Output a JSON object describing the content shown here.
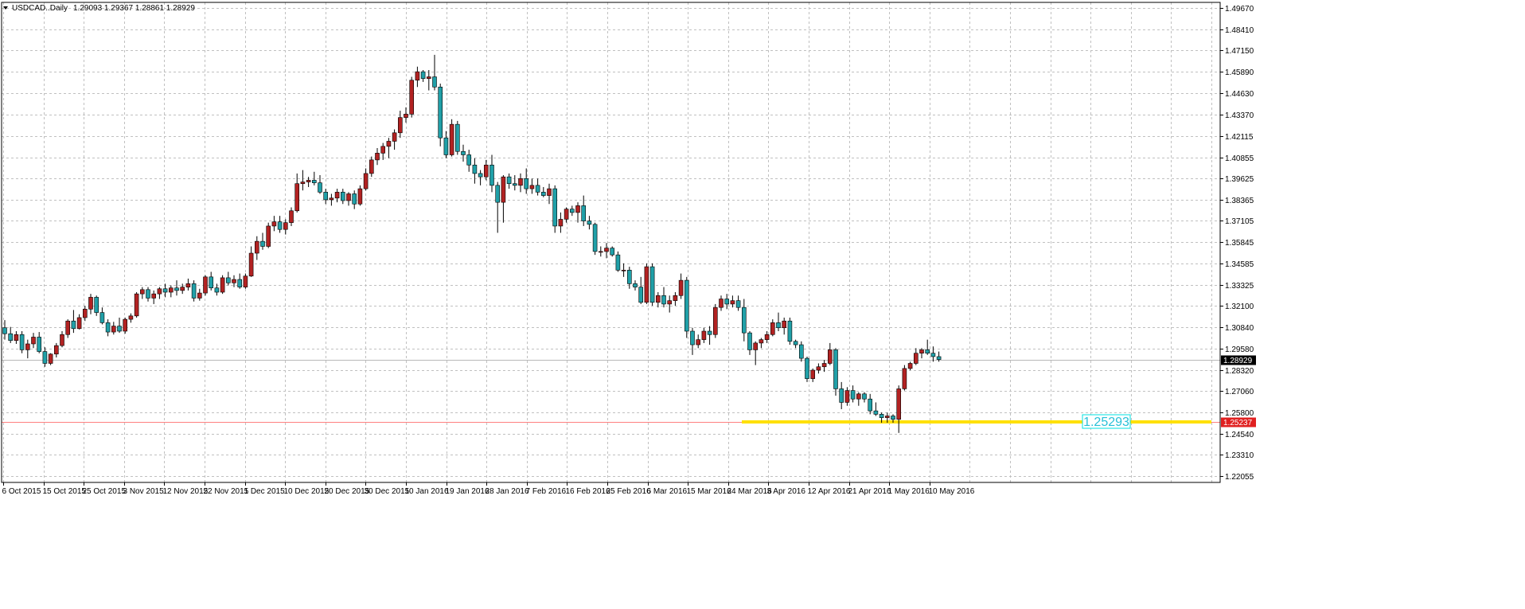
{
  "header": {
    "symbol": "USDCAD..Daily",
    "ohlc": "1.29093 1.29367 1.28861 1.28929"
  },
  "colors": {
    "bull": "#b22222",
    "bear": "#20a0a8",
    "grid": "#c0c0c0",
    "support_line": "#ff8080",
    "zone": "#ffe000",
    "label_box": "#00e0e0"
  },
  "current_price": "1.28929",
  "support_price": "1.25237",
  "zone_label": "1.25293",
  "chart_data": {
    "type": "candlestick",
    "title": "",
    "xlabel": "",
    "ylabel": "",
    "ylim": [
      1.2168,
      1.4999
    ],
    "y_ticks": [
      "1.49670",
      "1.48410",
      "1.47150",
      "1.45890",
      "1.44630",
      "1.43370",
      "1.42115",
      "1.40855",
      "1.39625",
      "1.38365",
      "1.37105",
      "1.35845",
      "1.34585",
      "1.33325",
      "1.32100",
      "1.30840",
      "1.29580",
      "1.28320",
      "1.27060",
      "1.25800",
      "1.24540",
      "1.23310",
      "1.22055"
    ],
    "x_ticks": [
      "6 Oct 2015",
      "15 Oct 2015",
      "25 Oct 2015",
      "3 Nov 2015",
      "12 Nov 2015",
      "22 Nov 2015",
      "1 Dec 2015",
      "10 Dec 2015",
      "20 Dec 2015",
      "30 Dec 2015",
      "10 Jan 2016",
      "19 Jan 2016",
      "28 Jan 2016",
      "7 Feb 2016",
      "16 Feb 2016",
      "25 Feb 2016",
      "6 Mar 2016",
      "15 Mar 2016",
      "24 Mar 2016",
      "3 Apr 2016",
      "12 Apr 2016",
      "21 Apr 2016",
      "1 May 2016",
      "10 May 2016"
    ],
    "horizontal_lines": [
      {
        "price": 1.28929,
        "label": "1.28929"
      },
      {
        "price": 1.25237,
        "label": "1.25237"
      }
    ],
    "zone": {
      "price": 1.2529,
      "label": "1.25293"
    },
    "candles": [
      [
        1.308,
        1.3125,
        1.301,
        1.3045
      ],
      [
        1.3045,
        1.3085,
        1.299,
        1.3005
      ],
      [
        1.3005,
        1.306,
        1.2985,
        1.304
      ],
      [
        1.304,
        1.306,
        1.293,
        1.295
      ],
      [
        1.295,
        1.301,
        1.29,
        1.2985
      ],
      [
        1.2985,
        1.305,
        1.296,
        1.3025
      ],
      [
        1.3025,
        1.3055,
        1.293,
        1.294
      ],
      [
        1.294,
        1.2965,
        1.285,
        1.287
      ],
      [
        1.287,
        1.293,
        1.286,
        1.2925
      ],
      [
        1.2925,
        1.299,
        1.2905,
        1.2975
      ],
      [
        1.2975,
        1.306,
        1.2965,
        1.304
      ],
      [
        1.304,
        1.313,
        1.302,
        1.312
      ],
      [
        1.312,
        1.3185,
        1.305,
        1.3075
      ],
      [
        1.3075,
        1.316,
        1.307,
        1.314
      ],
      [
        1.314,
        1.321,
        1.312,
        1.319
      ],
      [
        1.319,
        1.328,
        1.316,
        1.326
      ],
      [
        1.326,
        1.327,
        1.315,
        1.317
      ],
      [
        1.317,
        1.32,
        1.31,
        1.311
      ],
      [
        1.311,
        1.313,
        1.303,
        1.3055
      ],
      [
        1.3055,
        1.3115,
        1.304,
        1.309
      ],
      [
        1.309,
        1.314,
        1.305,
        1.306
      ],
      [
        1.306,
        1.314,
        1.3045,
        1.313
      ],
      [
        1.313,
        1.3165,
        1.311,
        1.315
      ],
      [
        1.315,
        1.329,
        1.314,
        1.328
      ],
      [
        1.328,
        1.332,
        1.325,
        1.3305
      ],
      [
        1.3305,
        1.332,
        1.3235,
        1.3255
      ],
      [
        1.3255,
        1.33,
        1.322,
        1.328
      ],
      [
        1.328,
        1.332,
        1.325,
        1.331
      ],
      [
        1.331,
        1.334,
        1.326,
        1.329
      ],
      [
        1.329,
        1.333,
        1.326,
        1.3315
      ],
      [
        1.3315,
        1.336,
        1.327,
        1.33
      ],
      [
        1.33,
        1.334,
        1.328,
        1.332
      ],
      [
        1.332,
        1.337,
        1.33,
        1.334
      ],
      [
        1.334,
        1.336,
        1.3235,
        1.3255
      ],
      [
        1.3255,
        1.331,
        1.324,
        1.3285
      ],
      [
        1.3285,
        1.339,
        1.327,
        1.338
      ],
      [
        1.338,
        1.341,
        1.33,
        1.3315
      ],
      [
        1.3315,
        1.334,
        1.327,
        1.329
      ],
      [
        1.329,
        1.339,
        1.328,
        1.3375
      ],
      [
        1.3375,
        1.341,
        1.333,
        1.3345
      ],
      [
        1.3345,
        1.339,
        1.332,
        1.3365
      ],
      [
        1.3365,
        1.34,
        1.331,
        1.332
      ],
      [
        1.332,
        1.34,
        1.331,
        1.3385
      ],
      [
        1.3385,
        1.356,
        1.338,
        1.352
      ],
      [
        1.352,
        1.362,
        1.348,
        1.359
      ],
      [
        1.359,
        1.364,
        1.354,
        1.356
      ],
      [
        1.356,
        1.37,
        1.355,
        1.368
      ],
      [
        1.368,
        1.374,
        1.365,
        1.3705
      ],
      [
        1.3705,
        1.374,
        1.364,
        1.366
      ],
      [
        1.366,
        1.372,
        1.363,
        1.37
      ],
      [
        1.37,
        1.379,
        1.368,
        1.377
      ],
      [
        1.377,
        1.399,
        1.376,
        1.393
      ],
      [
        1.393,
        1.401,
        1.389,
        1.394
      ],
      [
        1.394,
        1.397,
        1.391,
        1.395
      ],
      [
        1.395,
        1.4,
        1.392,
        1.3935
      ],
      [
        1.3935,
        1.398,
        1.387,
        1.388
      ],
      [
        1.388,
        1.39,
        1.381,
        1.3835
      ],
      [
        1.3835,
        1.387,
        1.38,
        1.3845
      ],
      [
        1.3845,
        1.39,
        1.382,
        1.388
      ],
      [
        1.388,
        1.39,
        1.381,
        1.383
      ],
      [
        1.383,
        1.388,
        1.38,
        1.387
      ],
      [
        1.387,
        1.389,
        1.378,
        1.381
      ],
      [
        1.381,
        1.392,
        1.38,
        1.39
      ],
      [
        1.39,
        1.402,
        1.389,
        1.399
      ],
      [
        1.399,
        1.409,
        1.397,
        1.407
      ],
      [
        1.407,
        1.414,
        1.404,
        1.411
      ],
      [
        1.411,
        1.417,
        1.407,
        1.415
      ],
      [
        1.415,
        1.42,
        1.408,
        1.418
      ],
      [
        1.418,
        1.425,
        1.413,
        1.423
      ],
      [
        1.423,
        1.436,
        1.42,
        1.432
      ],
      [
        1.432,
        1.438,
        1.429,
        1.434
      ],
      [
        1.434,
        1.456,
        1.432,
        1.454
      ],
      [
        1.454,
        1.462,
        1.45,
        1.459
      ],
      [
        1.459,
        1.46,
        1.453,
        1.455
      ],
      [
        1.455,
        1.46,
        1.448,
        1.456
      ],
      [
        1.456,
        1.469,
        1.448,
        1.45
      ],
      [
        1.45,
        1.452,
        1.415,
        1.42
      ],
      [
        1.42,
        1.424,
        1.408,
        1.41
      ],
      [
        1.41,
        1.431,
        1.409,
        1.428
      ],
      [
        1.428,
        1.43,
        1.41,
        1.412
      ],
      [
        1.412,
        1.416,
        1.406,
        1.41
      ],
      [
        1.41,
        1.413,
        1.4,
        1.404
      ],
      [
        1.404,
        1.408,
        1.393,
        1.399
      ],
      [
        1.399,
        1.401,
        1.392,
        1.397
      ],
      [
        1.397,
        1.407,
        1.395,
        1.404
      ],
      [
        1.404,
        1.41,
        1.388,
        1.392
      ],
      [
        1.392,
        1.394,
        1.364,
        1.382
      ],
      [
        1.382,
        1.398,
        1.37,
        1.397
      ],
      [
        1.397,
        1.399,
        1.39,
        1.393
      ],
      [
        1.393,
        1.398,
        1.389,
        1.392
      ],
      [
        1.392,
        1.399,
        1.388,
        1.396
      ],
      [
        1.396,
        1.402,
        1.387,
        1.39
      ],
      [
        1.39,
        1.396,
        1.387,
        1.392
      ],
      [
        1.392,
        1.396,
        1.386,
        1.388
      ],
      [
        1.388,
        1.391,
        1.385,
        1.386
      ],
      [
        1.386,
        1.393,
        1.381,
        1.39
      ],
      [
        1.39,
        1.392,
        1.364,
        1.368
      ],
      [
        1.368,
        1.376,
        1.364,
        1.372
      ],
      [
        1.372,
        1.379,
        1.37,
        1.378
      ],
      [
        1.378,
        1.38,
        1.374,
        1.376
      ],
      [
        1.376,
        1.382,
        1.37,
        1.38
      ],
      [
        1.38,
        1.386,
        1.368,
        1.371
      ],
      [
        1.371,
        1.374,
        1.366,
        1.369
      ],
      [
        1.369,
        1.37,
        1.351,
        1.353
      ],
      [
        1.353,
        1.356,
        1.35,
        1.353
      ],
      [
        1.353,
        1.358,
        1.349,
        1.355
      ],
      [
        1.355,
        1.356,
        1.35,
        1.351
      ],
      [
        1.351,
        1.353,
        1.341,
        1.342
      ],
      [
        1.342,
        1.346,
        1.338,
        1.342
      ],
      [
        1.342,
        1.344,
        1.331,
        1.334
      ],
      [
        1.334,
        1.336,
        1.33,
        1.332
      ],
      [
        1.332,
        1.338,
        1.322,
        1.323
      ],
      [
        1.323,
        1.346,
        1.322,
        1.344
      ],
      [
        1.344,
        1.346,
        1.321,
        1.323
      ],
      [
        1.323,
        1.329,
        1.32,
        1.327
      ],
      [
        1.327,
        1.332,
        1.32,
        1.322
      ],
      [
        1.322,
        1.327,
        1.317,
        1.324
      ],
      [
        1.324,
        1.329,
        1.321,
        1.327
      ],
      [
        1.327,
        1.34,
        1.325,
        1.336
      ],
      [
        1.336,
        1.338,
        1.302,
        1.306
      ],
      [
        1.306,
        1.308,
        1.292,
        1.298
      ],
      [
        1.298,
        1.304,
        1.296,
        1.301
      ],
      [
        1.301,
        1.308,
        1.299,
        1.306
      ],
      [
        1.306,
        1.309,
        1.298,
        1.304
      ],
      [
        1.304,
        1.322,
        1.302,
        1.32
      ],
      [
        1.32,
        1.327,
        1.318,
        1.325
      ],
      [
        1.325,
        1.328,
        1.319,
        1.322
      ],
      [
        1.322,
        1.327,
        1.32,
        1.324
      ],
      [
        1.324,
        1.327,
        1.318,
        1.32
      ],
      [
        1.32,
        1.325,
        1.3,
        1.305
      ],
      [
        1.305,
        1.306,
        1.292,
        1.295
      ],
      [
        1.295,
        1.3,
        1.286,
        1.299
      ],
      [
        1.299,
        1.302,
        1.296,
        1.301
      ],
      [
        1.301,
        1.306,
        1.299,
        1.304
      ],
      [
        1.304,
        1.313,
        1.303,
        1.311
      ],
      [
        1.311,
        1.317,
        1.306,
        1.308
      ],
      [
        1.308,
        1.314,
        1.304,
        1.312
      ],
      [
        1.312,
        1.314,
        1.298,
        1.3
      ],
      [
        1.3,
        1.301,
        1.296,
        1.298
      ],
      [
        1.298,
        1.3,
        1.288,
        1.29
      ],
      [
        1.29,
        1.291,
        1.276,
        1.278
      ],
      [
        1.278,
        1.284,
        1.276,
        1.283
      ],
      [
        1.283,
        1.287,
        1.281,
        1.285
      ],
      [
        1.285,
        1.289,
        1.282,
        1.287
      ],
      [
        1.287,
        1.299,
        1.286,
        1.295
      ],
      [
        1.295,
        1.296,
        1.268,
        1.272
      ],
      [
        1.272,
        1.276,
        1.26,
        1.264
      ],
      [
        1.264,
        1.273,
        1.262,
        1.271
      ],
      [
        1.271,
        1.274,
        1.264,
        1.266
      ],
      [
        1.266,
        1.27,
        1.262,
        1.269
      ],
      [
        1.269,
        1.27,
        1.264,
        1.266
      ],
      [
        1.266,
        1.269,
        1.257,
        1.259
      ],
      [
        1.259,
        1.264,
        1.256,
        1.257
      ],
      [
        1.257,
        1.258,
        1.252,
        1.255
      ],
      [
        1.255,
        1.258,
        1.252,
        1.256
      ],
      [
        1.256,
        1.257,
        1.252,
        1.254
      ],
      [
        1.254,
        1.274,
        1.246,
        1.272
      ],
      [
        1.272,
        1.286,
        1.271,
        1.284
      ],
      [
        1.284,
        1.288,
        1.283,
        1.287
      ],
      [
        1.287,
        1.296,
        1.286,
        1.293
      ],
      [
        1.293,
        1.296,
        1.29,
        1.295
      ],
      [
        1.295,
        1.301,
        1.292,
        1.293
      ],
      [
        1.293,
        1.297,
        1.288,
        1.291
      ],
      [
        1.291,
        1.294,
        1.288,
        1.2893
      ]
    ]
  }
}
